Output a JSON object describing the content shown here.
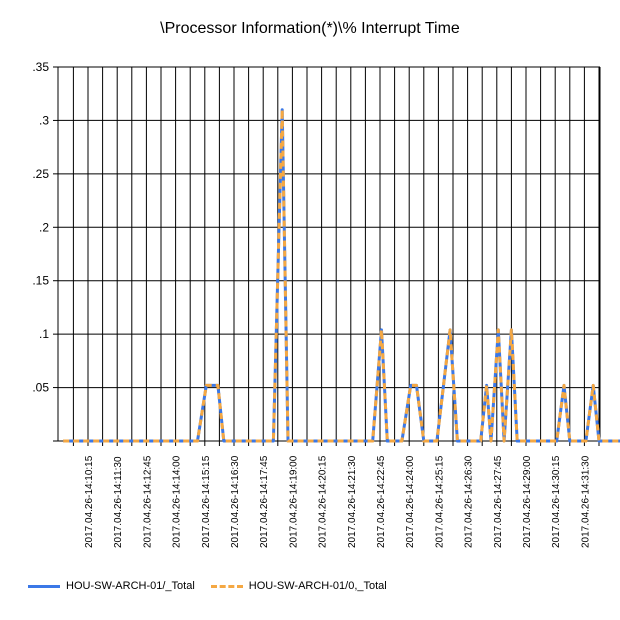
{
  "chart_data": {
    "type": "line",
    "title": "\\Processor Information(*)\\% Interrupt Time",
    "ylim": [
      0,
      0.35
    ],
    "y_ticks": [
      0,
      0.05,
      0.1,
      0.15,
      0.2,
      0.25,
      0.3,
      0.35
    ],
    "y_tick_labels": [
      "",
      ".05",
      ".1",
      ".15",
      ".2",
      ".25",
      ".3",
      ".35"
    ],
    "x_tick_labels": [
      "2017.04.26-14:10:15",
      "2017.04.26-14:11:30",
      "2017.04.26-14:12:45",
      "2017.04.26-14:14:00",
      "2017.04.26-14:15:15",
      "2017.04.26-14:16:30",
      "2017.04.26-14:17:45",
      "2017.04.26-14:19:00",
      "2017.04.26-14:20:15",
      "2017.04.26-14:21:30",
      "2017.04.26-14:22:45",
      "2017.04.26-14:24:00",
      "2017.04.26-14:25:15",
      "2017.04.26-14:26:30",
      "2017.04.26-14:27:45",
      "2017.04.26-14:29:00",
      "2017.04.26-14:30:15",
      "2017.04.26-14:31:30"
    ],
    "grid": true,
    "legend_position": "bottom-left",
    "series": [
      {
        "name": "HOU-SW-ARCH-01/_Total",
        "color": "#3b78e7",
        "style": "solid",
        "points": [
          [
            0,
            0
          ],
          [
            4.6,
            0
          ],
          [
            4.9,
            0.052
          ],
          [
            5.3,
            0.052
          ],
          [
            5.5,
            0
          ],
          [
            7.2,
            0
          ],
          [
            7.5,
            0.31
          ],
          [
            7.7,
            0
          ],
          [
            10.6,
            0
          ],
          [
            10.9,
            0.104
          ],
          [
            11.1,
            0
          ],
          [
            11.6,
            0
          ],
          [
            11.9,
            0.052
          ],
          [
            12.1,
            0.052
          ],
          [
            12.35,
            0
          ],
          [
            12.8,
            0
          ],
          [
            13.25,
            0.104
          ],
          [
            13.5,
            0
          ],
          [
            14.3,
            0
          ],
          [
            14.5,
            0.052
          ],
          [
            14.65,
            0
          ],
          [
            14.9,
            0.104
          ],
          [
            15.1,
            0
          ],
          [
            15.35,
            0.104
          ],
          [
            15.55,
            0
          ],
          [
            16.9,
            0
          ],
          [
            17.15,
            0.052
          ],
          [
            17.35,
            0
          ],
          [
            17.9,
            0
          ],
          [
            18.15,
            0.052
          ],
          [
            18.35,
            0
          ],
          [
            19.3,
            0
          ],
          [
            19.5,
            0.052
          ]
        ]
      },
      {
        "name": "HOU-SW-ARCH-01/0,_Total",
        "color": "#f5a843",
        "style": "dashed",
        "points": [
          [
            0,
            0
          ],
          [
            4.6,
            0
          ],
          [
            4.9,
            0.052
          ],
          [
            5.3,
            0.052
          ],
          [
            5.5,
            0
          ],
          [
            7.2,
            0
          ],
          [
            7.5,
            0.31
          ],
          [
            7.7,
            0
          ],
          [
            10.6,
            0
          ],
          [
            10.9,
            0.104
          ],
          [
            11.1,
            0
          ],
          [
            11.6,
            0
          ],
          [
            11.9,
            0.052
          ],
          [
            12.1,
            0.052
          ],
          [
            12.35,
            0
          ],
          [
            12.8,
            0
          ],
          [
            13.25,
            0.104
          ],
          [
            13.5,
            0
          ],
          [
            14.3,
            0
          ],
          [
            14.5,
            0.052
          ],
          [
            14.65,
            0
          ],
          [
            14.9,
            0.104
          ],
          [
            15.1,
            0
          ],
          [
            15.35,
            0.104
          ],
          [
            15.55,
            0
          ],
          [
            16.9,
            0
          ],
          [
            17.15,
            0.052
          ],
          [
            17.35,
            0
          ],
          [
            17.9,
            0
          ],
          [
            18.15,
            0.052
          ],
          [
            18.35,
            0
          ],
          [
            19.3,
            0
          ],
          [
            19.5,
            0.052
          ]
        ]
      }
    ]
  }
}
